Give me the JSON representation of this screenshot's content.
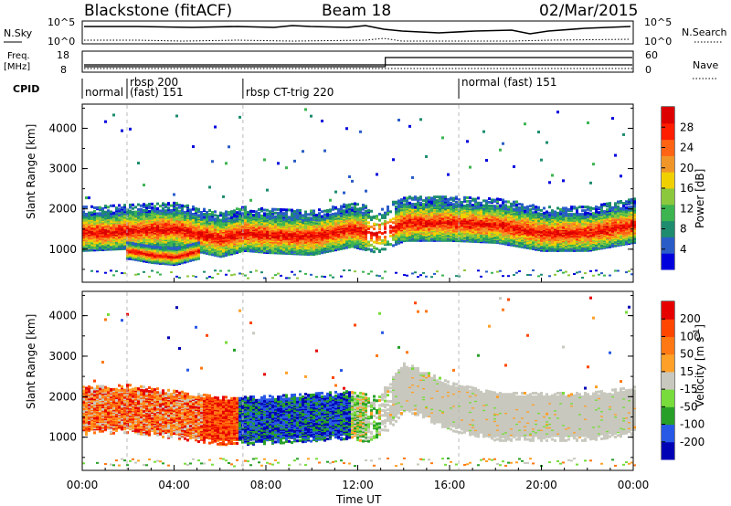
{
  "header": {
    "title": "Blackstone (fitACF)",
    "beam": "Beam 18",
    "date": "02/Mar/2015"
  },
  "nsky_panel": {
    "left_label": "N.Sky",
    "right_label": "N.Search",
    "left_ticks": [
      "10^5",
      "10^0"
    ],
    "right_ticks": [
      "10^5",
      "10^0"
    ]
  },
  "freq_panel": {
    "left_label": "Freq.",
    "left_unit": "[MHz]",
    "right_label": "Nave",
    "left_ticks": [
      "18",
      "8"
    ],
    "right_ticks": [
      "60",
      "0"
    ],
    "freq_mhz": 11,
    "nave_step_hour": 13.2
  },
  "cpid_panel": {
    "label": "CPID",
    "modes": [
      {
        "text": "normal",
        "start_hour": 0.0,
        "line": 1
      },
      {
        "text": "rbsp 200",
        "start_hour": 1.95,
        "line": 0
      },
      {
        "text": "(fast) 151",
        "start_hour": 1.95,
        "line": 1
      },
      {
        "text": "rbsp CT-trig 220",
        "start_hour": 7.0,
        "line": 1
      },
      {
        "text": "normal (fast) 151",
        "start_hour": 16.4,
        "line": 0
      }
    ]
  },
  "x_axis": {
    "label": "Time UT",
    "ticks": [
      "00:00",
      "04:00",
      "08:00",
      "12:00",
      "16:00",
      "20:00",
      "00:00"
    ]
  },
  "chart_data": [
    {
      "type": "heatmap",
      "title": "Power",
      "xlabel": "Time UT",
      "ylabel": "Slant Range [km]",
      "x_range_hours": [
        0,
        24
      ],
      "ylim": [
        180,
        4600
      ],
      "yticks": [
        "4000",
        "3000",
        "2000",
        "1000"
      ],
      "colorbar": {
        "label": "Power [dB]",
        "ticks": [
          "28",
          "24",
          "20",
          "16",
          "12",
          "8",
          "4"
        ],
        "colors": [
          "#0000dd",
          "#2a5cc8",
          "#1e8c6e",
          "#3cb450",
          "#8cc83c",
          "#f0d000",
          "#f09628",
          "#ff6414",
          "#ff1e00",
          "#dc0000"
        ]
      },
      "series": [
        {
          "x": [
            0.0,
            2.0,
            4.0,
            6.0,
            7.0,
            8.0,
            10.0,
            11.7,
            12.8,
            14.0,
            16.0,
            18.0,
            20.0,
            22.0,
            24.0
          ],
          "y": [
            1450,
            1500,
            1550,
            1300,
            1450,
            1400,
            1350,
            1550,
            1400,
            1700,
            1700,
            1650,
            1450,
            1450,
            1650
          ]
        },
        {
          "x": [
            2.0,
            3.0,
            4.0,
            5.0
          ],
          "y": [
            1000,
            900,
            850,
            1000
          ]
        }
      ]
    },
    {
      "type": "heatmap",
      "title": "Velocity",
      "xlabel": "Time UT",
      "ylabel": "Slant Range [km]",
      "x_range_hours": [
        0,
        24
      ],
      "ylim": [
        180,
        4600
      ],
      "yticks": [
        "4000",
        "3000",
        "2000",
        "1000"
      ],
      "colorbar": {
        "label": "Velocity [m s-1]",
        "ticks": [
          "200",
          "100",
          "50",
          "15",
          "-15",
          "-50",
          "-100",
          "-200"
        ],
        "colors": [
          "#0000b4",
          "#2858e6",
          "#28a028",
          "#78dc3c",
          "#c8c8be",
          "#ffa028",
          "#ff7814",
          "#ff4600",
          "#e60000"
        ]
      },
      "series": [
        {
          "x": [
            0.0,
            2.0,
            4.0,
            6.0,
            7.0,
            9.0,
            11.7,
            12.8,
            14.0,
            16.0,
            18.0,
            20.0,
            22.0,
            24.0
          ],
          "y": [
            1700,
            1750,
            1600,
            1450,
            1450,
            1500,
            1600,
            1450,
            2300,
            1800,
            1550,
            1550,
            1550,
            1700
          ]
        }
      ]
    }
  ]
}
